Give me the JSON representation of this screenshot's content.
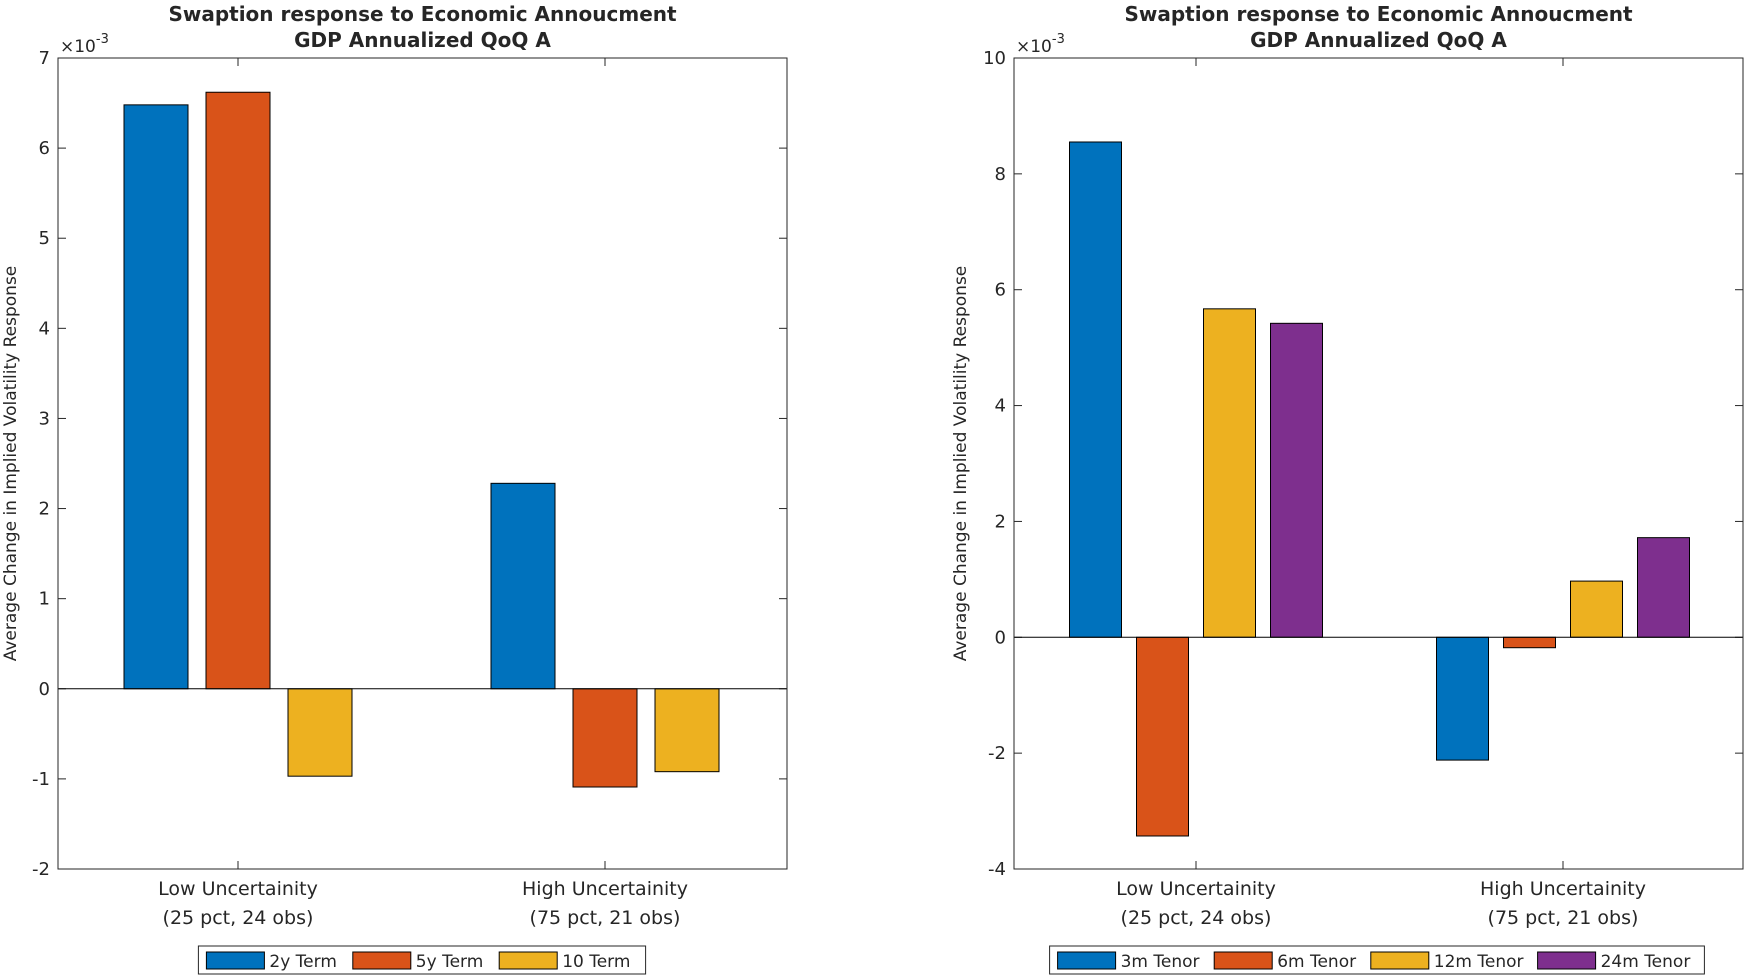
{
  "chart_data": [
    {
      "type": "bar",
      "title": "Swaption response to Economic Annoucment",
      "subtitle": "GDP Annualized QoQ A",
      "ylabel": "Average Change in Implied Volatility Response",
      "exponent_label": "×10",
      "exponent_power": "-3",
      "categories": [
        [
          "Low Uncertainity",
          "(25 pct, 24 obs)"
        ],
        [
          "High Uncertainity",
          "(75 pct, 21 obs)"
        ]
      ],
      "ylim": [
        -2,
        7
      ],
      "yticks": [
        -2,
        -1,
        0,
        1,
        2,
        3,
        4,
        5,
        6,
        7
      ],
      "ytick_labels": [
        "-2",
        "-1",
        "0",
        "1",
        "2",
        "3",
        "4",
        "5",
        "6",
        "7"
      ],
      "series": [
        {
          "name": "2y Term",
          "color": "#0072BD",
          "values": [
            6.48,
            2.28
          ]
        },
        {
          "name": "5y Term",
          "color": "#D95319",
          "values": [
            6.62,
            -1.09
          ]
        },
        {
          "name": "10 Term",
          "color": "#EDB120",
          "values": [
            -0.97,
            -0.92
          ]
        }
      ],
      "legend_location": "bottom"
    },
    {
      "type": "bar",
      "title": "Swaption response to Economic Annoucment",
      "subtitle": "GDP Annualized QoQ A",
      "ylabel": "Average Change in Implied Volatility Response",
      "exponent_label": "×10",
      "exponent_power": "-3",
      "categories": [
        [
          "Low Uncertainity",
          "(25 pct, 24 obs)"
        ],
        [
          "High Uncertainity",
          "(75 pct, 21 obs)"
        ]
      ],
      "ylim": [
        -4,
        10
      ],
      "yticks": [
        -4,
        -2,
        0,
        2,
        4,
        6,
        8,
        10
      ],
      "ytick_labels": [
        "-4",
        "-2",
        "0",
        "2",
        "4",
        "6",
        "8",
        "10"
      ],
      "series": [
        {
          "name": "3m Tenor",
          "color": "#0072BD",
          "values": [
            8.55,
            -2.12
          ]
        },
        {
          "name": "6m Tenor",
          "color": "#D95319",
          "values": [
            -3.43,
            -0.18
          ]
        },
        {
          "name": "12m Tenor",
          "color": "#EDB120",
          "values": [
            5.67,
            0.97
          ]
        },
        {
          "name": "24m Tenor",
          "color": "#7E2F8E",
          "values": [
            5.42,
            1.72
          ]
        }
      ],
      "legend_location": "bottom"
    }
  ]
}
